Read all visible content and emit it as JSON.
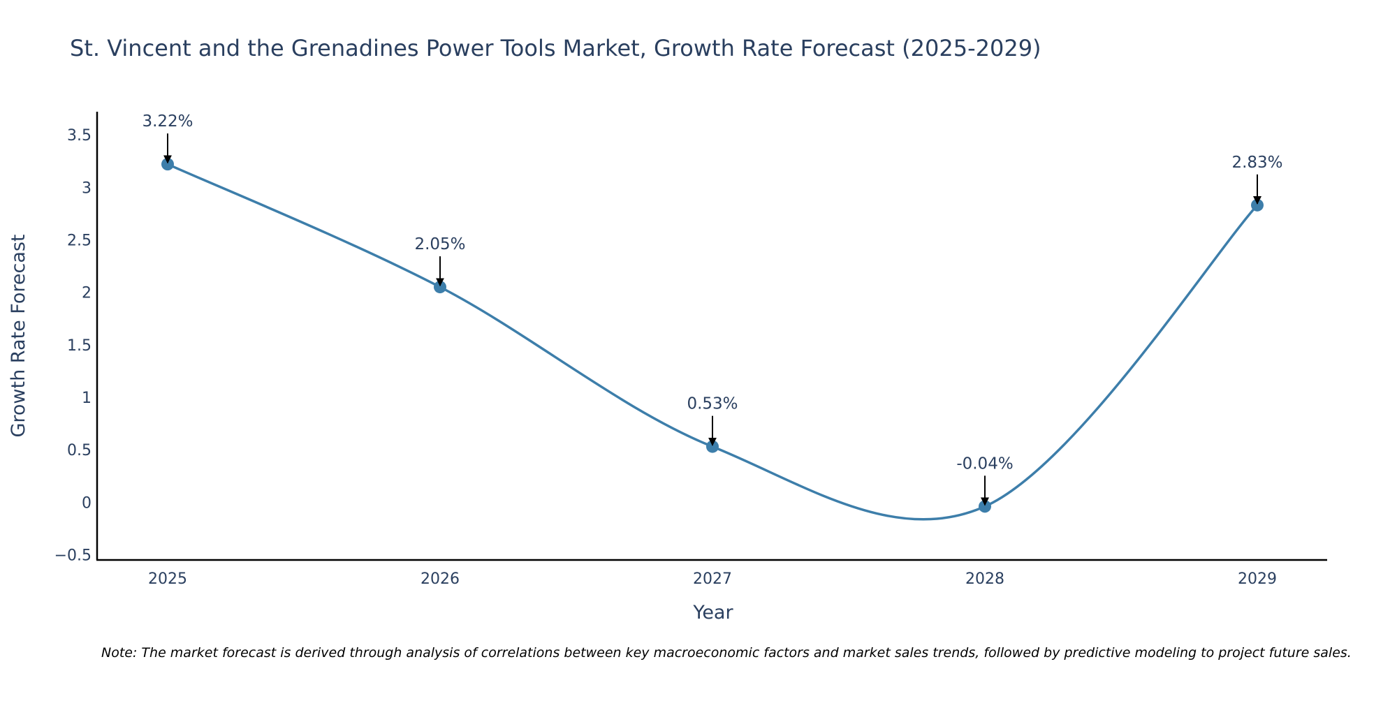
{
  "colors": {
    "line": "#3d7eaa",
    "marker": "#3d7eaa",
    "text": "#2a3f5f",
    "axis": "#000000",
    "arrow": "#000000",
    "background": "#ffffff"
  },
  "chart_data": {
    "type": "line",
    "title": "St. Vincent and the Grenadines Power Tools Market, Growth Rate Forecast (2025-2029)",
    "xlabel": "Year",
    "ylabel": "Growth Rate Forecast",
    "categories": [
      "2025",
      "2026",
      "2027",
      "2028",
      "2029"
    ],
    "values": [
      3.22,
      2.05,
      0.53,
      -0.04,
      2.83
    ],
    "annotations": [
      "3.22%",
      "2.05%",
      "0.53%",
      "-0.04%",
      "2.83%"
    ],
    "yticks": [
      -0.5,
      0,
      0.5,
      1,
      1.5,
      2,
      2.5,
      3,
      3.5
    ],
    "ytick_labels": [
      "−0.5",
      "0",
      "0.5",
      "1",
      "1.5",
      "2",
      "2.5",
      "3",
      "3.5"
    ],
    "ylim": [
      -0.55,
      3.72
    ],
    "grid": false,
    "line_shape": "spline",
    "note": "Note: The market forecast is derived through analysis of correlations between key macroeconomic factors and market sales trends, followed by predictive modeling to project future sales."
  }
}
